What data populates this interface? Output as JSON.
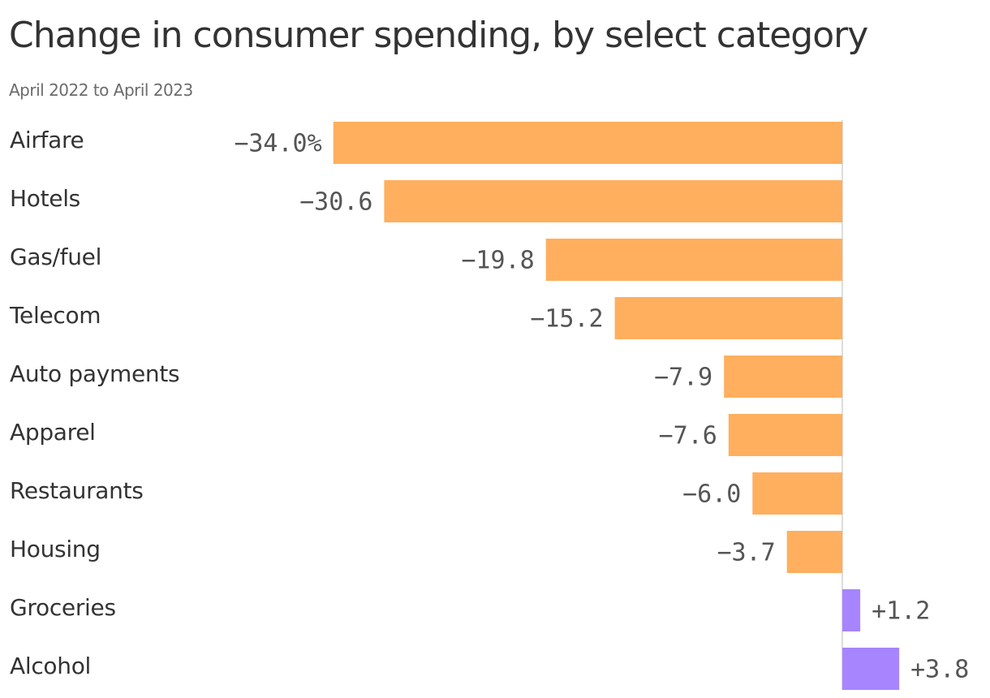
{
  "title": "Change in consumer spending, by select category",
  "subtitle": "April 2022 to April 2023",
  "colors": {
    "negative": "#FFAF5E",
    "positive": "#A685FF",
    "zero_line": "#dddddd",
    "category_text": "#333333",
    "value_text": "#555555"
  },
  "chart_data": {
    "type": "bar",
    "orientation": "horizontal",
    "categories": [
      "Airfare",
      "Hotels",
      "Gas/fuel",
      "Telecom",
      "Auto payments",
      "Apparel",
      "Restaurants",
      "Housing",
      "Groceries",
      "Alcohol"
    ],
    "values": [
      -34.0,
      -30.6,
      -19.8,
      -15.2,
      -7.9,
      -7.6,
      -6.0,
      -3.7,
      1.2,
      3.8
    ],
    "value_labels": [
      "−34.0%",
      "−30.6",
      "−19.8",
      "−15.2",
      "−7.9",
      "−7.6",
      "−6.0",
      "−3.7",
      "+1.2",
      "+3.8"
    ],
    "unit": "%",
    "xlim": [
      -34.0,
      3.8
    ],
    "grid": false,
    "legend": "none"
  }
}
